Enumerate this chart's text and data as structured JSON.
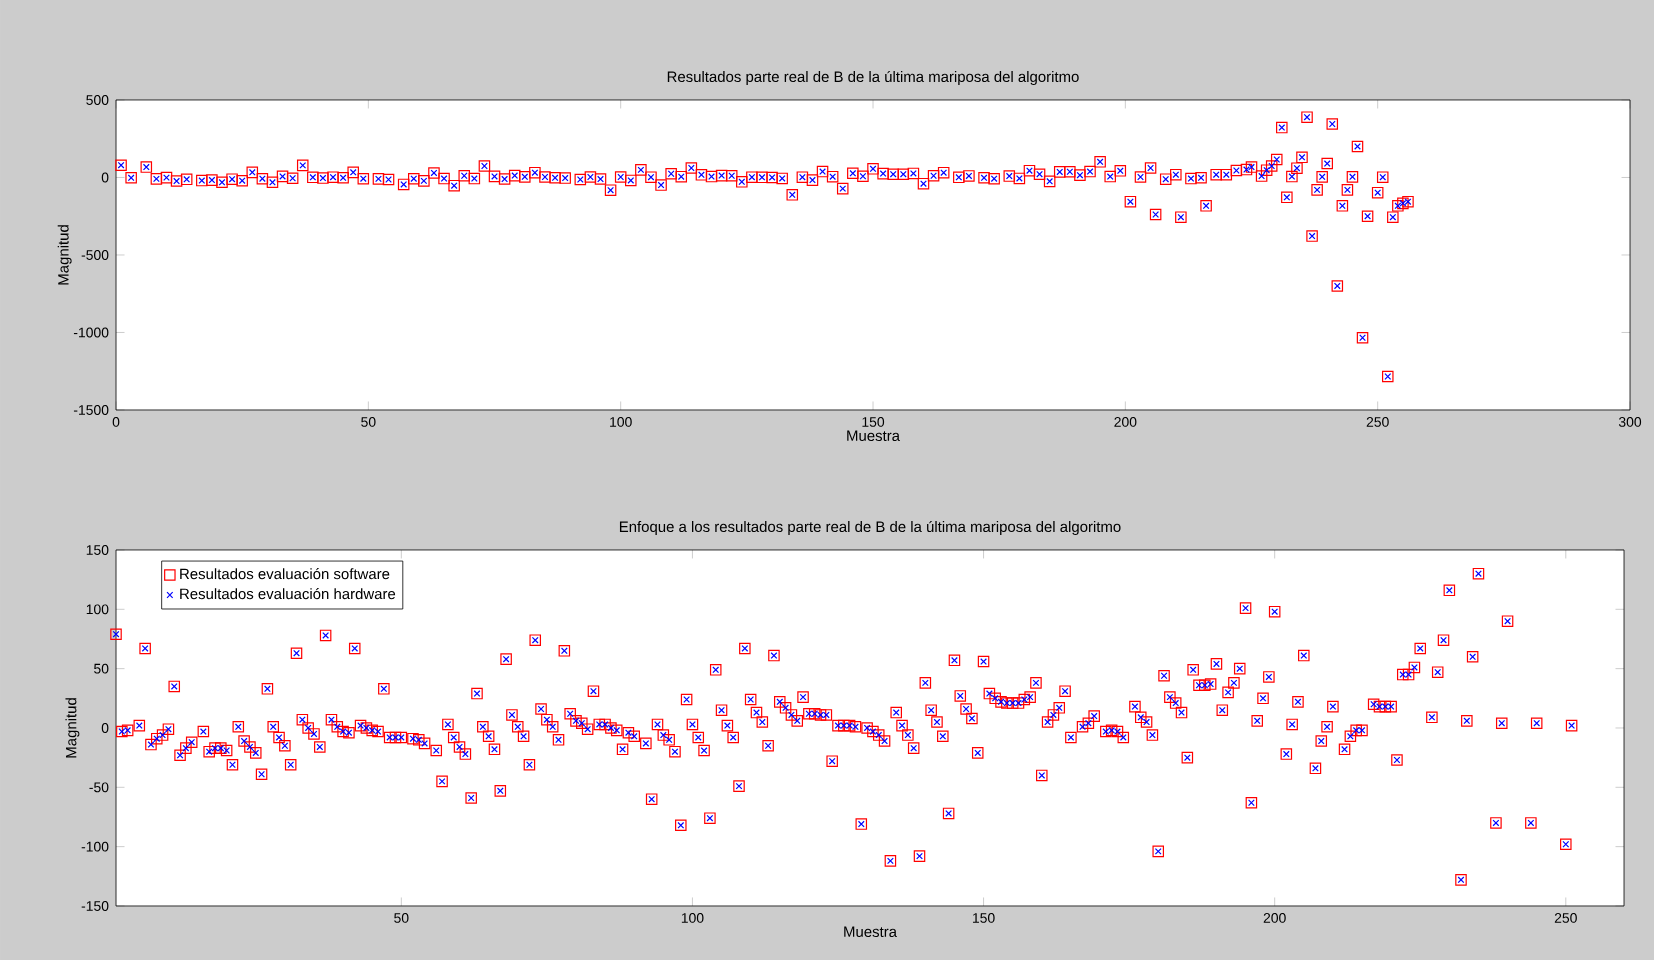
{
  "chart_data": [
    {
      "type": "scatter",
      "title": "Resultados parte real de B de la última mariposa del algoritmo",
      "xlabel": "Muestra",
      "ylabel": "Magnitud",
      "xlim": [
        0,
        300
      ],
      "ylim": [
        -1500,
        500
      ],
      "xticks": [
        0,
        50,
        100,
        150,
        200,
        250,
        300
      ],
      "yticks": [
        -1500,
        -1000,
        -500,
        0,
        500
      ],
      "legend": false,
      "series": [
        {
          "color": "#ff0000",
          "marker": "square",
          "x": [
            1,
            3,
            6,
            8,
            10,
            12,
            14,
            17,
            19,
            21,
            23,
            25,
            27,
            29,
            31,
            33,
            35,
            37,
            39,
            41,
            43,
            45,
            47,
            49,
            52,
            54,
            57,
            59,
            61,
            63,
            65,
            67,
            69,
            71,
            73,
            75,
            77,
            79,
            81,
            83,
            85,
            87,
            89,
            92,
            94,
            96,
            98,
            100,
            102,
            104,
            106,
            108,
            110,
            112,
            114,
            116,
            118,
            120,
            122,
            124,
            126,
            128,
            130,
            132,
            134,
            136,
            138,
            140,
            142,
            144,
            146,
            148,
            150,
            152,
            154,
            156,
            158,
            160,
            162,
            164,
            167,
            169,
            172,
            174,
            177,
            179,
            181,
            183,
            185,
            187,
            189,
            191,
            193,
            195,
            197,
            199,
            201,
            203,
            205,
            206,
            208,
            210,
            211,
            213,
            215,
            216,
            218,
            220,
            222,
            224,
            225,
            227,
            228,
            229,
            230,
            231,
            232,
            233,
            234,
            235,
            236,
            237,
            238,
            239,
            240,
            241,
            242,
            243,
            244,
            245,
            246,
            247,
            248,
            250,
            251,
            252,
            253,
            254,
            255,
            256
          ],
          "values": [
            79,
            -2,
            67,
            -9,
            -1,
            -23,
            -12,
            -20,
            -17,
            -31,
            -11,
            -21,
            33,
            -8,
            -31,
            7,
            -5,
            78,
            1,
            -4,
            2,
            -2,
            33,
            -8,
            -9,
            -13,
            -45,
            -8,
            -22,
            29,
            -7,
            -53,
            11,
            -7,
            74,
            7,
            -10,
            12,
            4,
            31,
            3,
            -2,
            -4,
            -13,
            3,
            -10,
            -82,
            3,
            -19,
            49,
            2,
            -49,
            24,
            5,
            61,
            17,
            6,
            12,
            11,
            -28,
            2,
            1,
            0,
            -6,
            -112,
            2,
            -17,
            38,
            5,
            -72,
            27,
            8,
            56,
            25,
            21,
            21,
            26,
            -40,
            11,
            31,
            1,
            10,
            -2,
            -8,
            9,
            -6,
            44,
            21,
            -25,
            36,
            37,
            15,
            38,
            101,
            6,
            43,
            -156,
            3,
            61,
            -239,
            -11,
            18,
            -256,
            -7,
            -2,
            -183,
            18,
            18,
            45,
            51,
            67,
            9,
            47,
            74,
            116,
            322,
            -128,
            6,
            60,
            130,
            389,
            -378,
            -80,
            4,
            90,
            345,
            -700,
            -183,
            -80,
            4,
            200,
            -1034,
            -250,
            -98,
            2,
            -1284,
            -256,
            -183,
            -167,
            -156
          ]
        },
        {
          "color": "#0000ff",
          "marker": "cross",
          "x": [
            1,
            3,
            6,
            8,
            10,
            12,
            14,
            17,
            19,
            21,
            23,
            25,
            27,
            29,
            31,
            33,
            35,
            37,
            39,
            41,
            43,
            45,
            47,
            49,
            52,
            54,
            57,
            59,
            61,
            63,
            65,
            67,
            69,
            71,
            73,
            75,
            77,
            79,
            81,
            83,
            85,
            87,
            89,
            92,
            94,
            96,
            98,
            100,
            102,
            104,
            106,
            108,
            110,
            112,
            114,
            116,
            118,
            120,
            122,
            124,
            126,
            128,
            130,
            132,
            134,
            136,
            138,
            140,
            142,
            144,
            146,
            148,
            150,
            152,
            154,
            156,
            158,
            160,
            162,
            164,
            167,
            169,
            172,
            174,
            177,
            179,
            181,
            183,
            185,
            187,
            189,
            191,
            193,
            195,
            197,
            199,
            201,
            203,
            205,
            206,
            208,
            210,
            211,
            213,
            215,
            216,
            218,
            220,
            222,
            224,
            225,
            227,
            228,
            229,
            230,
            231,
            232,
            233,
            234,
            235,
            236,
            237,
            238,
            239,
            240,
            241,
            242,
            243,
            244,
            245,
            246,
            247,
            248,
            250,
            251,
            252,
            253,
            254,
            255,
            256
          ],
          "values": [
            79,
            -2,
            67,
            -9,
            -1,
            -23,
            -12,
            -20,
            -17,
            -31,
            -11,
            -21,
            33,
            -8,
            -31,
            7,
            -5,
            78,
            1,
            -4,
            2,
            -2,
            33,
            -8,
            -9,
            -13,
            -45,
            -8,
            -22,
            29,
            -7,
            -53,
            11,
            -7,
            74,
            7,
            -10,
            12,
            4,
            31,
            3,
            -2,
            -4,
            -13,
            3,
            -10,
            -82,
            3,
            -19,
            49,
            2,
            -49,
            24,
            5,
            61,
            17,
            6,
            12,
            11,
            -28,
            2,
            1,
            0,
            -6,
            -112,
            2,
            -17,
            38,
            5,
            -72,
            27,
            8,
            56,
            25,
            21,
            21,
            26,
            -40,
            11,
            31,
            1,
            10,
            -2,
            -8,
            9,
            -6,
            44,
            21,
            -25,
            36,
            37,
            15,
            38,
            101,
            6,
            43,
            -156,
            3,
            61,
            -239,
            -11,
            18,
            -256,
            -7,
            -2,
            -183,
            18,
            18,
            45,
            51,
            67,
            9,
            47,
            74,
            116,
            322,
            -128,
            6,
            60,
            130,
            389,
            -378,
            -80,
            4,
            90,
            345,
            -700,
            -183,
            -80,
            4,
            200,
            -1034,
            -250,
            -98,
            2,
            -1284,
            -256,
            -183,
            -167,
            -156
          ]
        }
      ]
    },
    {
      "type": "scatter",
      "title": "Enfoque a los  resultados parte real de B de la última mariposa del algoritmo",
      "xlabel": "Muestra",
      "ylabel": "Magnitud",
      "xlim": [
        1,
        260
      ],
      "ylim": [
        -150,
        150
      ],
      "xticks": [
        50,
        100,
        150,
        200,
        250
      ],
      "yticks": [
        -150,
        -100,
        -50,
        0,
        50,
        100,
        150
      ],
      "legend": "top left",
      "series": [
        {
          "name": "Resultados evaluación software",
          "color": "#ff0000",
          "marker": "square",
          "x": [
            1,
            2,
            3,
            5,
            6,
            7,
            8,
            9,
            10,
            11,
            12,
            13,
            14,
            16,
            17,
            18,
            19,
            20,
            21,
            22,
            23,
            24,
            25,
            26,
            27,
            28,
            29,
            30,
            31,
            32,
            33,
            34,
            35,
            36,
            37,
            38,
            39,
            40,
            41,
            42,
            43,
            44,
            45,
            46,
            47,
            48,
            49,
            50,
            52,
            53,
            54,
            56,
            57,
            58,
            59,
            60,
            61,
            62,
            63,
            64,
            65,
            66,
            67,
            68,
            69,
            70,
            71,
            72,
            73,
            74,
            75,
            76,
            77,
            78,
            79,
            80,
            81,
            82,
            83,
            84,
            85,
            86,
            87,
            88,
            89,
            90,
            92,
            93,
            94,
            95,
            96,
            97,
            98,
            99,
            100,
            101,
            102,
            103,
            104,
            105,
            106,
            107,
            108,
            109,
            110,
            111,
            112,
            113,
            114,
            115,
            116,
            117,
            118,
            119,
            120,
            121,
            122,
            123,
            124,
            125,
            126,
            127,
            128,
            129,
            130,
            131,
            132,
            133,
            134,
            135,
            136,
            137,
            138,
            139,
            140,
            141,
            142,
            143,
            144,
            145,
            146,
            147,
            148,
            149,
            150,
            151,
            152,
            153,
            154,
            155,
            156,
            157,
            158,
            159,
            160,
            161,
            162,
            163,
            164,
            165,
            167,
            168,
            169,
            171,
            172,
            173,
            174,
            176,
            177,
            178,
            179,
            180,
            181,
            182,
            183,
            184,
            185,
            186,
            187,
            188,
            189,
            190,
            191,
            192,
            193,
            194,
            195,
            196,
            197,
            198,
            199,
            200,
            202,
            203,
            204,
            205,
            207,
            208,
            209,
            210,
            212,
            213,
            214,
            215,
            217,
            218,
            219,
            220,
            221,
            222,
            223,
            224,
            225,
            227,
            228,
            229,
            230,
            232,
            233,
            234,
            235,
            238,
            239,
            240,
            244,
            245,
            250,
            251
          ],
          "values": [
            79,
            -3,
            -2,
            2,
            67,
            -14,
            -9,
            -6,
            -1,
            35,
            -23,
            -17,
            -12,
            -3,
            -20,
            -17,
            -17,
            -19,
            -31,
            1,
            -11,
            -16,
            -21,
            -39,
            33,
            1,
            -8,
            -15,
            -31,
            63,
            7,
            0,
            -5,
            -16,
            78,
            7,
            1,
            -3,
            -4,
            67,
            2,
            0,
            -2,
            -3,
            33,
            -8,
            -8,
            -8,
            -9,
            -10,
            -13,
            -19,
            -45,
            3,
            -8,
            -16,
            -22,
            -59,
            29,
            1,
            -7,
            -18,
            -53,
            58,
            11,
            1,
            -7,
            -31,
            74,
            16,
            7,
            1,
            -10,
            65,
            12,
            6,
            4,
            -1,
            31,
            3,
            3,
            0,
            -2,
            -18,
            -4,
            -7,
            -13,
            -60,
            3,
            -6,
            -10,
            -20,
            -82,
            24,
            3,
            -8,
            -19,
            -76,
            49,
            15,
            2,
            -8,
            -49,
            67,
            24,
            13,
            5,
            -15,
            61,
            22,
            17,
            11,
            6,
            26,
            12,
            12,
            11,
            11,
            -28,
            2,
            2,
            2,
            1,
            -81,
            0,
            -3,
            -6,
            -11,
            -112,
            13,
            2,
            -6,
            -17,
            -108,
            38,
            15,
            5,
            -7,
            -72,
            57,
            27,
            16,
            8,
            -21,
            56,
            29,
            25,
            22,
            21,
            21,
            21,
            24,
            26,
            38,
            -40,
            5,
            11,
            17,
            31,
            -8,
            1,
            4,
            10,
            -3,
            -2,
            -3,
            -8,
            18,
            9,
            5,
            -6,
            -104,
            44,
            26,
            21,
            13,
            -25,
            49,
            36,
            36,
            37,
            54,
            15,
            30,
            38,
            50,
            101,
            -63,
            6,
            25,
            43,
            98,
            -22,
            3,
            22,
            61,
            -34,
            -11,
            1,
            18,
            -18,
            -7,
            -2,
            -2,
            20,
            18,
            18,
            18,
            -27,
            45,
            45,
            51,
            67,
            9,
            47,
            74,
            116,
            -128,
            6,
            60,
            130,
            -80,
            4,
            90,
            -80,
            4,
            -98,
            2
          ]
        },
        {
          "name": "Resultados evaluación hardware",
          "color": "#0000ff",
          "marker": "cross",
          "x": [
            1,
            2,
            3,
            5,
            6,
            7,
            8,
            9,
            10,
            11,
            12,
            13,
            14,
            16,
            17,
            18,
            19,
            20,
            21,
            22,
            23,
            24,
            25,
            26,
            27,
            28,
            29,
            30,
            31,
            32,
            33,
            34,
            35,
            36,
            37,
            38,
            39,
            40,
            41,
            42,
            43,
            44,
            45,
            46,
            47,
            48,
            49,
            50,
            52,
            53,
            54,
            56,
            57,
            58,
            59,
            60,
            61,
            62,
            63,
            64,
            65,
            66,
            67,
            68,
            69,
            70,
            71,
            72,
            73,
            74,
            75,
            76,
            77,
            78,
            79,
            80,
            81,
            82,
            83,
            84,
            85,
            86,
            87,
            88,
            89,
            90,
            92,
            93,
            94,
            95,
            96,
            97,
            98,
            99,
            100,
            101,
            102,
            103,
            104,
            105,
            106,
            107,
            108,
            109,
            110,
            111,
            112,
            113,
            114,
            115,
            116,
            117,
            118,
            119,
            120,
            121,
            122,
            123,
            124,
            125,
            126,
            127,
            128,
            129,
            130,
            131,
            132,
            133,
            134,
            135,
            136,
            137,
            138,
            139,
            140,
            141,
            142,
            143,
            144,
            145,
            146,
            147,
            148,
            149,
            150,
            151,
            152,
            153,
            154,
            155,
            156,
            157,
            158,
            159,
            160,
            161,
            162,
            163,
            164,
            165,
            167,
            168,
            169,
            171,
            172,
            173,
            174,
            176,
            177,
            178,
            179,
            180,
            181,
            182,
            183,
            184,
            185,
            186,
            187,
            188,
            189,
            190,
            191,
            192,
            193,
            194,
            195,
            196,
            197,
            198,
            199,
            200,
            202,
            203,
            204,
            205,
            207,
            208,
            209,
            210,
            212,
            213,
            214,
            215,
            217,
            218,
            219,
            220,
            221,
            222,
            223,
            224,
            225,
            227,
            228,
            229,
            230,
            232,
            233,
            234,
            235,
            238,
            239,
            240,
            244,
            245,
            250,
            251
          ],
          "values": [
            79,
            -3,
            -2,
            2,
            67,
            -14,
            -9,
            -6,
            -1,
            35,
            -23,
            -17,
            -12,
            -3,
            -20,
            -17,
            -17,
            -19,
            -31,
            1,
            -11,
            -16,
            -21,
            -39,
            33,
            1,
            -8,
            -15,
            -31,
            63,
            7,
            0,
            -5,
            -16,
            78,
            7,
            1,
            -3,
            -4,
            67,
            2,
            0,
            -2,
            -3,
            33,
            -8,
            -8,
            -8,
            -9,
            -10,
            -13,
            -19,
            -45,
            3,
            -8,
            -16,
            -22,
            -59,
            29,
            1,
            -7,
            -18,
            -53,
            58,
            11,
            1,
            -7,
            -31,
            74,
            16,
            7,
            1,
            -10,
            65,
            12,
            6,
            4,
            -1,
            31,
            3,
            3,
            0,
            -2,
            -18,
            -4,
            -7,
            -13,
            -60,
            3,
            -6,
            -10,
            -20,
            -82,
            24,
            3,
            -8,
            -19,
            -76,
            49,
            15,
            2,
            -8,
            -49,
            67,
            24,
            13,
            5,
            -15,
            61,
            22,
            17,
            11,
            6,
            26,
            12,
            12,
            11,
            11,
            -28,
            2,
            2,
            2,
            1,
            -81,
            0,
            -3,
            -6,
            -11,
            -112,
            13,
            2,
            -6,
            -17,
            -108,
            38,
            15,
            5,
            -7,
            -72,
            57,
            27,
            16,
            8,
            -21,
            56,
            29,
            25,
            22,
            21,
            21,
            21,
            24,
            26,
            38,
            -40,
            5,
            11,
            17,
            31,
            -8,
            1,
            4,
            10,
            -3,
            -2,
            -3,
            -8,
            18,
            9,
            5,
            -6,
            -104,
            44,
            26,
            21,
            13,
            -25,
            49,
            36,
            36,
            37,
            54,
            15,
            30,
            38,
            50,
            101,
            -63,
            6,
            25,
            43,
            98,
            -22,
            3,
            22,
            61,
            -34,
            -11,
            1,
            18,
            -18,
            -7,
            -2,
            -2,
            20,
            18,
            18,
            18,
            -27,
            45,
            45,
            51,
            67,
            9,
            47,
            74,
            116,
            -128,
            6,
            60,
            130,
            -80,
            4,
            90,
            -80,
            4,
            -98,
            2
          ]
        }
      ]
    }
  ]
}
